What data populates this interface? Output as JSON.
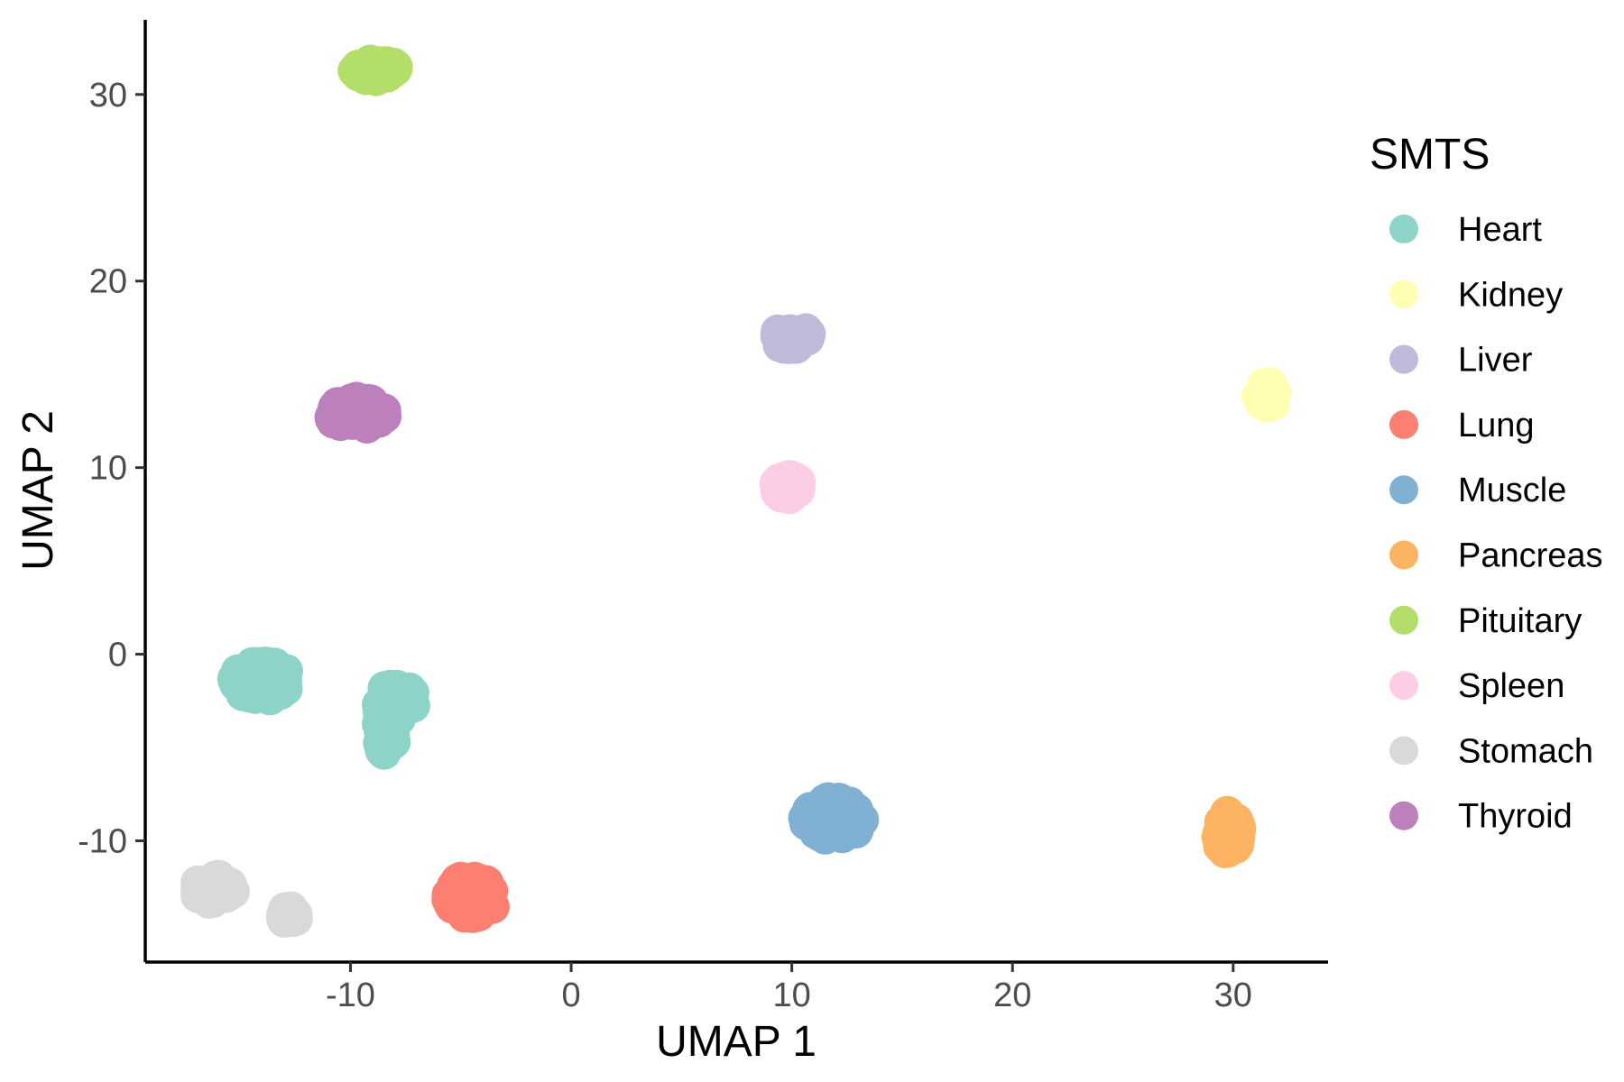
{
  "chart_data": {
    "type": "scatter",
    "title": "",
    "xlabel": "UMAP 1",
    "ylabel": "UMAP 2",
    "xlim": [
      -19.3,
      34.3
    ],
    "ylim": [
      -16.5,
      34
    ],
    "x_ticks": [
      -10,
      0,
      10,
      20,
      30
    ],
    "y_ticks": [
      -10,
      0,
      10,
      20,
      30
    ],
    "x_tick_labels": [
      "-10",
      "0",
      "10",
      "20",
      "30"
    ],
    "y_tick_labels": [
      "-10",
      "0",
      "10",
      "20",
      "30"
    ],
    "grid": false,
    "legend": {
      "title": "SMTS",
      "position": "right"
    },
    "series": [
      {
        "name": "Heart",
        "color": "#8DD3C7",
        "clusters": [
          {
            "cx": -14.0,
            "cy": -1.4,
            "rx": 1.3,
            "ry": 1.0,
            "n": 60
          },
          {
            "cx": -7.9,
            "cy": -2.6,
            "rx": 0.9,
            "ry": 1.0,
            "n": 40
          },
          {
            "cx": -8.4,
            "cy": -4.3,
            "rx": 0.4,
            "ry": 1.0,
            "n": 20
          }
        ]
      },
      {
        "name": "Kidney",
        "color": "#FFFFB3",
        "clusters": [
          {
            "cx": 31.6,
            "cy": 13.9,
            "rx": 0.5,
            "ry": 0.6,
            "n": 25
          }
        ]
      },
      {
        "name": "Liver",
        "color": "#BEBADA",
        "clusters": [
          {
            "cx": 10.0,
            "cy": 17.0,
            "rx": 0.8,
            "ry": 0.6,
            "n": 40
          }
        ]
      },
      {
        "name": "Lung",
        "color": "#FB8072",
        "clusters": [
          {
            "cx": -4.5,
            "cy": -13.0,
            "rx": 1.1,
            "ry": 1.1,
            "n": 70
          }
        ]
      },
      {
        "name": "Muscle",
        "color": "#80B1D3",
        "clusters": [
          {
            "cx": 11.9,
            "cy": -8.8,
            "rx": 1.3,
            "ry": 1.1,
            "n": 80
          }
        ]
      },
      {
        "name": "Pancreas",
        "color": "#FDB462",
        "clusters": [
          {
            "cx": 29.8,
            "cy": -9.6,
            "rx": 0.5,
            "ry": 1.2,
            "n": 40
          }
        ]
      },
      {
        "name": "Pituitary",
        "color": "#B3DE69",
        "clusters": [
          {
            "cx": -8.8,
            "cy": 31.3,
            "rx": 1.1,
            "ry": 0.5,
            "n": 40
          }
        ]
      },
      {
        "name": "Spleen",
        "color": "#FCCDE5",
        "clusters": [
          {
            "cx": 9.8,
            "cy": 9.0,
            "rx": 0.6,
            "ry": 0.6,
            "n": 30
          }
        ]
      },
      {
        "name": "Stomach",
        "color": "#D9D9D9",
        "clusters": [
          {
            "cx": -16.2,
            "cy": -12.6,
            "rx": 0.9,
            "ry": 0.7,
            "n": 40
          },
          {
            "cx": -12.8,
            "cy": -14.0,
            "rx": 0.4,
            "ry": 0.4,
            "n": 15
          }
        ]
      },
      {
        "name": "Thyroid",
        "color": "#BC80BD",
        "clusters": [
          {
            "cx": -9.7,
            "cy": 12.9,
            "rx": 1.3,
            "ry": 0.8,
            "n": 80
          }
        ]
      }
    ]
  }
}
